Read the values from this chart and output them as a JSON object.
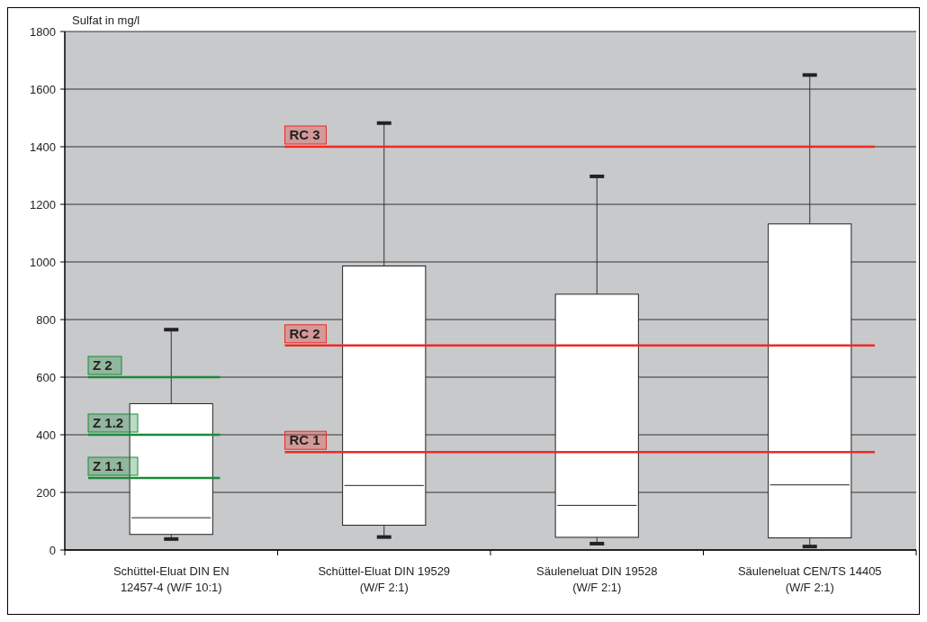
{
  "chart_data": {
    "type": "box",
    "ylabel": "Sulfat in mg/l",
    "categories": [
      "Schüttel-Eluat DIN EN 12457-4 (W/F 10:1)",
      "Schüttel-Eluat DIN 19529 (W/F 2:1)",
      "Säuleneluat DIN 19528 (W/F 2:1)",
      "Säuleneluat CEN/TS 14405 (W/F 2:1)"
    ],
    "boxes": [
      {
        "low": 38,
        "q1": 54,
        "median": 112,
        "q3": 508,
        "high": 765
      },
      {
        "low": 45,
        "q1": 86,
        "median": 224,
        "q3": 986,
        "high": 1482
      },
      {
        "low": 22,
        "q1": 44,
        "median": 155,
        "q3": 888,
        "high": 1297
      },
      {
        "low": 12,
        "q1": 42,
        "median": 226,
        "q3": 1132,
        "high": 1649
      }
    ],
    "ylim": [
      0,
      1800
    ],
    "yticks": [
      0,
      200,
      400,
      600,
      800,
      1000,
      1200,
      1400,
      1600,
      1800
    ],
    "grid": "y",
    "ref_lines": [
      {
        "axis": "y",
        "value": 600,
        "label": "Z 2",
        "color": "#1a8a3a"
      },
      {
        "axis": "y",
        "value": 400,
        "label": "Z 1.2",
        "color": "#1a8a3a"
      },
      {
        "axis": "y",
        "value": 250,
        "label": "Z 1.1",
        "color": "#1a8a3a"
      },
      {
        "axis": "y",
        "value": 1400,
        "label": "RC 3",
        "color": "#ee2a24"
      },
      {
        "axis": "y",
        "value": 710,
        "label": "RC 2",
        "color": "#ee2a24"
      },
      {
        "axis": "y",
        "value": 340,
        "label": "RC 1",
        "color": "#ee2a24"
      }
    ]
  }
}
